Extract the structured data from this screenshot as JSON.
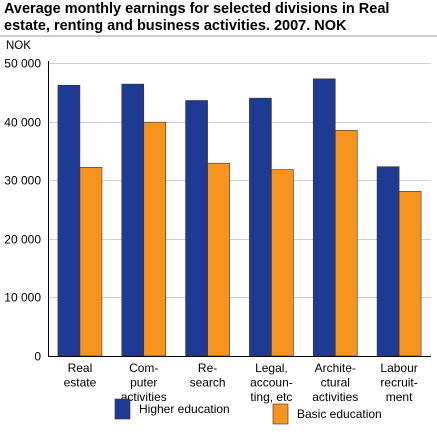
{
  "chart_data": {
    "type": "bar",
    "title": "Average monthly earnings for selected divisions in Real estate, renting and business activities. 2007. NOK",
    "ylabel": "NOK",
    "xlabel": "",
    "ylim": [
      0,
      50000
    ],
    "yticks": [
      0,
      10000,
      20000,
      30000,
      40000,
      50000
    ],
    "ytick_labels": [
      "0",
      "10 000",
      "20 000",
      "30 000",
      "40 000",
      "50 000"
    ],
    "grid": true,
    "legend_position": "bottom",
    "categories": [
      [
        "Real",
        "estate"
      ],
      [
        "Com-",
        "puter",
        "activities"
      ],
      [
        "Re-",
        "search"
      ],
      [
        "Legal,",
        "accoun-",
        "ting, etc"
      ],
      [
        "Archite-",
        "ctural",
        "activities"
      ],
      [
        "Labour",
        "recruit-",
        "ment"
      ]
    ],
    "series": [
      {
        "name": "Higher education",
        "color": "#1f3a93",
        "values": [
          46200,
          46400,
          43600,
          44000,
          47300,
          32300
        ]
      },
      {
        "name": "Basic education",
        "color": "#f7941d",
        "values": [
          32200,
          39900,
          32900,
          31800,
          38500,
          28100
        ]
      }
    ]
  }
}
